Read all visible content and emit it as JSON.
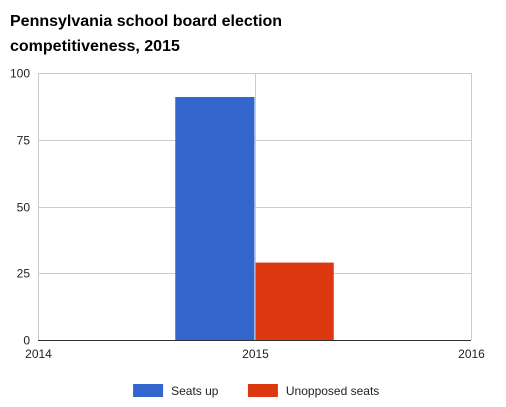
{
  "chart_data": {
    "type": "bar",
    "title_lines": [
      "Pennsylvania school board election",
      "competitiveness, 2015"
    ],
    "xlabel": "",
    "ylabel": "",
    "categories": [
      "2015"
    ],
    "series": [
      {
        "name": "Seats up",
        "values": [
          91
        ],
        "color": "#3366cc"
      },
      {
        "name": "Unopposed seats",
        "values": [
          29
        ],
        "color": "#dc3912"
      }
    ],
    "xlim": [
      2014,
      2016
    ],
    "x_ticks": [
      "2014",
      "2015",
      "2016"
    ],
    "ylim": [
      0,
      100
    ],
    "y_ticks": [
      "0",
      "25",
      "50",
      "75",
      "100"
    ],
    "grid": true,
    "legend_position": "bottom"
  }
}
